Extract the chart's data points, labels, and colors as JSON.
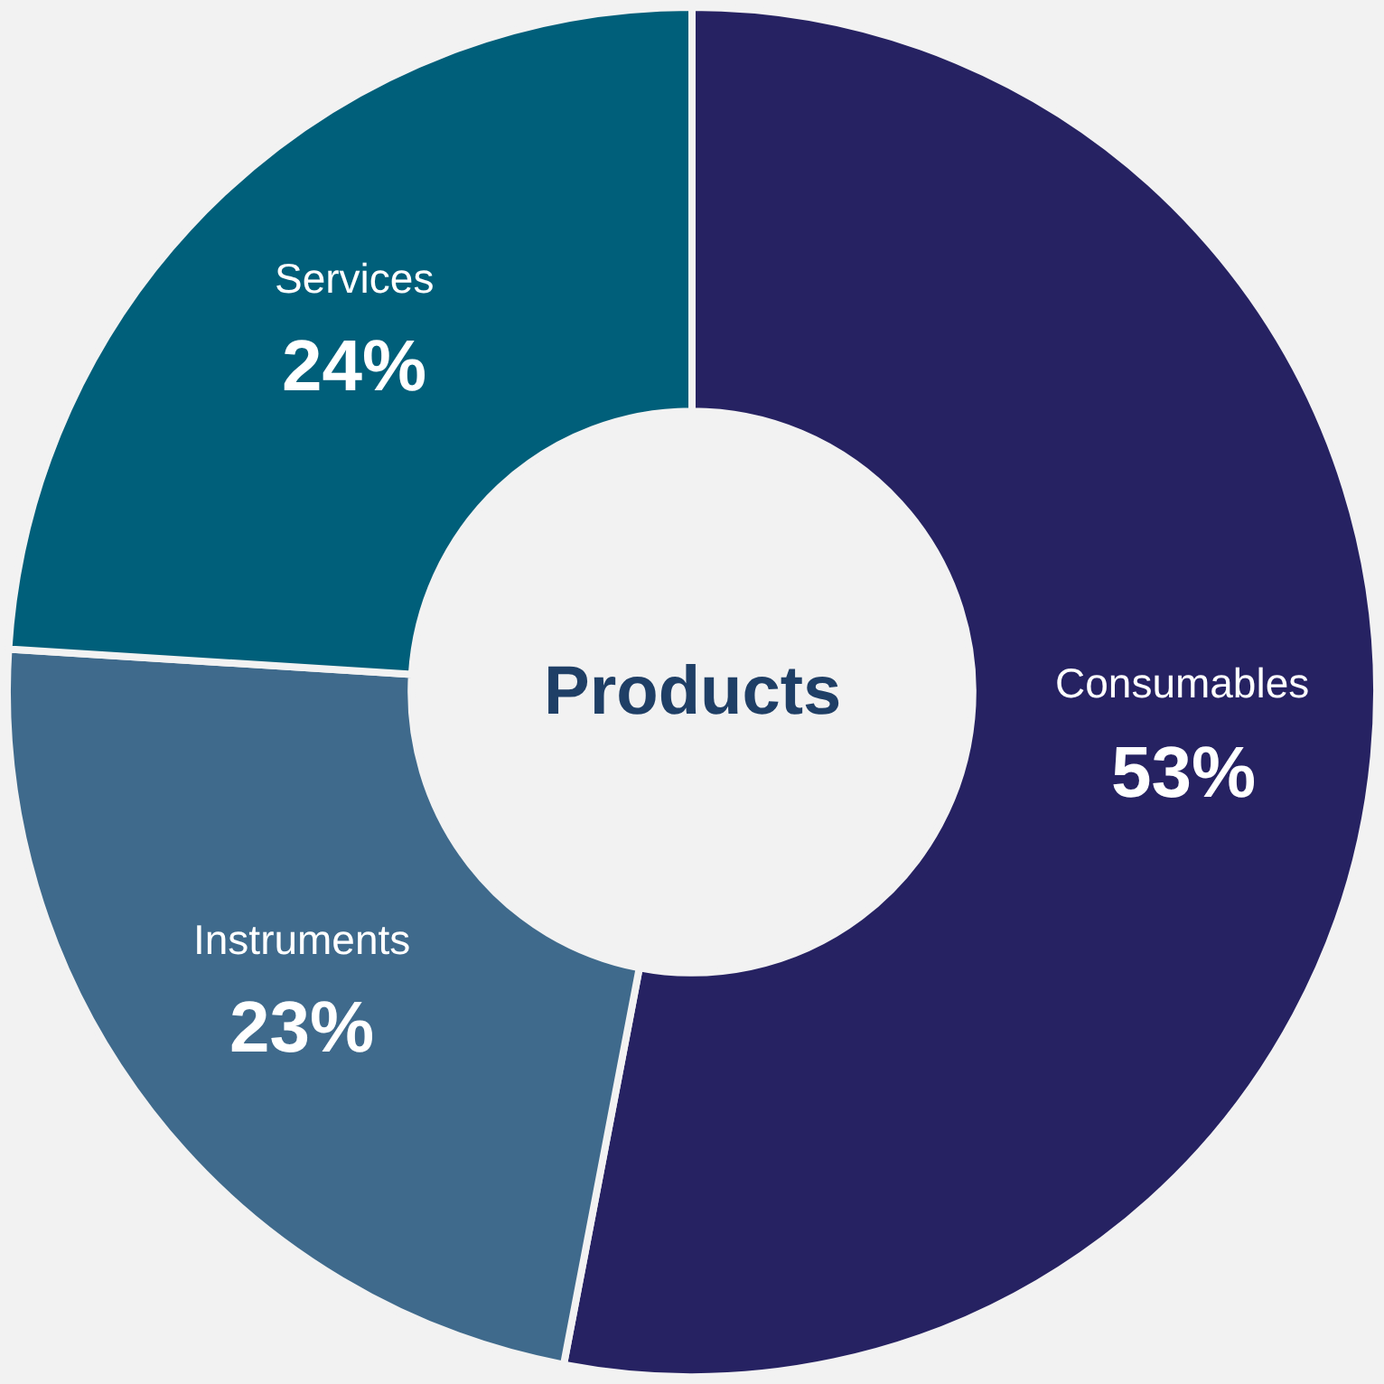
{
  "chart_data": {
    "type": "donut",
    "title": "Products",
    "categories": [
      "Consumables",
      "Instruments",
      "Services"
    ],
    "values": [
      53,
      23,
      24
    ],
    "value_labels": [
      "53%",
      "23%",
      "24%"
    ],
    "colors": [
      "#262262",
      "#3f6a8c",
      "#005f7a"
    ],
    "legend": false
  }
}
